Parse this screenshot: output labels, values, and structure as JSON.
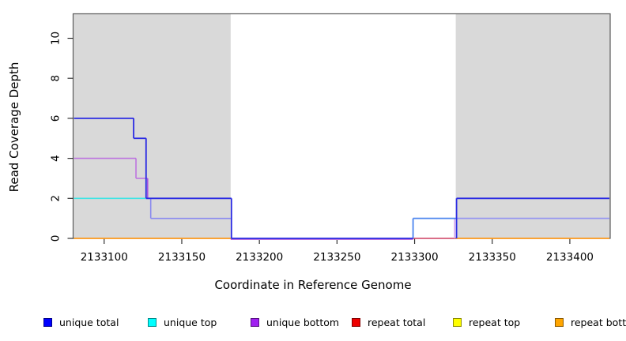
{
  "chart_data": {
    "type": "line",
    "subtype": "step-coverage",
    "title": "",
    "xlabel": "Coordinate in Reference Genome",
    "ylabel": "Read Coverage Depth",
    "xlim": [
      2133080,
      2133426
    ],
    "ylim": [
      0,
      11.2
    ],
    "x_ticks": [
      2133100,
      2133150,
      2133200,
      2133250,
      2133300,
      2133350,
      2133400
    ],
    "y_ticks": [
      0,
      2,
      4,
      6,
      8,
      10
    ],
    "grid": false,
    "plot_background": "#ffffff",
    "shaded_regions": {
      "color": "#d9d9d9",
      "regions": [
        [
          2133080,
          2133181.5
        ],
        [
          2133326.5,
          2133426
        ]
      ]
    },
    "series": [
      {
        "name": "unique total",
        "color": "#0000ff",
        "steps": [
          [
            2133080,
            6
          ],
          [
            2133119,
            5
          ],
          [
            2133127,
            2
          ],
          [
            2133182,
            0
          ],
          [
            2133327,
            2
          ],
          [
            2133426,
            2
          ]
        ]
      },
      {
        "name": "unique top",
        "color": "#00ffff",
        "steps": [
          [
            2133080,
            2
          ],
          [
            2133127,
            1
          ],
          [
            2133182,
            0
          ],
          [
            2133299,
            1
          ],
          [
            2133426,
            1
          ]
        ]
      },
      {
        "name": "unique bottom",
        "color": "#a020f0",
        "steps": [
          [
            2133080,
            4
          ],
          [
            2133120.5,
            3
          ],
          [
            2133128,
            1
          ],
          [
            2133182,
            0
          ],
          [
            2133326,
            1
          ],
          [
            2133426,
            1
          ]
        ]
      },
      {
        "name": "repeat total",
        "color": "#ee0000",
        "steps": [
          [
            2133080,
            0
          ],
          [
            2133426,
            0
          ]
        ]
      },
      {
        "name": "repeat top",
        "color": "#ffff00",
        "steps": [
          [
            2133080,
            0
          ],
          [
            2133426,
            0
          ]
        ]
      },
      {
        "name": "repeat bottom",
        "color": "#ffa500",
        "steps": [
          [
            2133080,
            0
          ],
          [
            2133426,
            0
          ]
        ]
      }
    ],
    "legend": {
      "position": "bottom",
      "entries": [
        {
          "label": "unique total",
          "color": "#0000ff"
        },
        {
          "label": "unique top",
          "color": "#00ffff"
        },
        {
          "label": "unique bottom",
          "color": "#a020f0"
        },
        {
          "label": "repeat total",
          "color": "#ee0000"
        },
        {
          "label": "repeat top",
          "color": "#ffff00"
        },
        {
          "label": "repeat bottom",
          "color": "#ffa500"
        }
      ]
    },
    "render_segments": [
      {
        "x1": 2133080.5,
        "y1": 2,
        "x2": 2133127,
        "y2": 2,
        "color": "#3fe4e4",
        "w": 1.6,
        "dy": 0
      },
      {
        "x1": 2133080.5,
        "y1": 4,
        "x2": 2133120.5,
        "y2": 4,
        "color": "#bd74df",
        "w": 1.6,
        "dy": 0
      },
      {
        "x1": 2133120.5,
        "y1": 4,
        "x2": 2133120.5,
        "y2": 3,
        "color": "#bd74df",
        "w": 1.6,
        "dy": 0
      },
      {
        "x1": 2133120.5,
        "y1": 3,
        "x2": 2133128,
        "y2": 3,
        "color": "#bd74df",
        "w": 1.6,
        "dy": 0
      },
      {
        "x1": 2133128,
        "y1": 3,
        "x2": 2133128,
        "y2": 2,
        "color": "#a24fe0",
        "w": 1.6,
        "dy": 0
      },
      {
        "x1": 2133181.5,
        "y1": 0,
        "x2": 2133299,
        "y2": 0,
        "color": "#bd74df",
        "w": 1.6,
        "dy": 1.2
      },
      {
        "x1": 2133130,
        "y1": 2,
        "x2": 2133130,
        "y2": 1,
        "color": "#8a8aef",
        "w": 1.6,
        "dy": 0
      },
      {
        "x1": 2133130,
        "y1": 1,
        "x2": 2133181.5,
        "y2": 1,
        "color": "#8a8aef",
        "w": 1.6,
        "dy": 0
      },
      {
        "x1": 2133299,
        "y1": 0,
        "x2": 2133326.5,
        "y2": 0,
        "color": "#d9486b",
        "w": 1.6,
        "dy": 0
      },
      {
        "x1": 2133325.8,
        "y1": 0,
        "x2": 2133325.8,
        "y2": 1,
        "color": "#d5a6ec",
        "w": 1.6,
        "dy": 0
      },
      {
        "x1": 2133326.5,
        "y1": 1,
        "x2": 2133425.5,
        "y2": 1,
        "color": "#9595f1",
        "w": 1.8,
        "dy": 0
      },
      {
        "x1": 2133080.5,
        "y1": 0,
        "x2": 2133181.5,
        "y2": 0,
        "color": "#ff9b1e",
        "w": 1.8,
        "dy": 0
      },
      {
        "x1": 2133326.5,
        "y1": 0,
        "x2": 2133425.5,
        "y2": 0,
        "color": "#ff9b1e",
        "w": 1.8,
        "dy": 0
      },
      {
        "x1": 2133299,
        "y1": 0,
        "x2": 2133299,
        "y2": 1,
        "color": "#4c86ef",
        "w": 1.8,
        "dy": 0
      },
      {
        "x1": 2133299,
        "y1": 1,
        "x2": 2133326.5,
        "y2": 1,
        "color": "#4c86ef",
        "w": 1.8,
        "dy": 0
      },
      {
        "x1": 2133080.5,
        "y1": 6,
        "x2": 2133119,
        "y2": 6,
        "color": "#2a2ae3",
        "w": 1.8,
        "dy": 0
      },
      {
        "x1": 2133119,
        "y1": 6,
        "x2": 2133119,
        "y2": 5,
        "color": "#2a2ae3",
        "w": 1.8,
        "dy": 0
      },
      {
        "x1": 2133119,
        "y1": 5,
        "x2": 2133127,
        "y2": 5,
        "color": "#2a2ae3",
        "w": 1.8,
        "dy": 0
      },
      {
        "x1": 2133127,
        "y1": 5,
        "x2": 2133127,
        "y2": 2,
        "color": "#2a2ae3",
        "w": 1.8,
        "dy": 0
      },
      {
        "x1": 2133127,
        "y1": 2,
        "x2": 2133182,
        "y2": 2,
        "color": "#2a2ae3",
        "w": 1.8,
        "dy": 0
      },
      {
        "x1": 2133182,
        "y1": 2,
        "x2": 2133182,
        "y2": 0,
        "color": "#2a2ae3",
        "w": 1.8,
        "dy": 0
      },
      {
        "x1": 2133182,
        "y1": 0,
        "x2": 2133299,
        "y2": 0,
        "color": "#2a2ae3",
        "w": 1.8,
        "dy": 0
      },
      {
        "x1": 2133327,
        "y1": 0,
        "x2": 2133327,
        "y2": 2,
        "color": "#2a2ae3",
        "w": 1.8,
        "dy": 0
      },
      {
        "x1": 2133327,
        "y1": 2,
        "x2": 2133425.5,
        "y2": 2,
        "color": "#2a2ae3",
        "w": 1.8,
        "dy": 0
      }
    ]
  },
  "axes": {
    "x_title": "Coordinate in Reference Genome",
    "y_title": "Read Coverage Depth"
  },
  "style_colors": {
    "box_stroke": "#5a5a5a",
    "tick_stroke": "#333333",
    "tick_label": "#000000",
    "shading": "#d9d9d9"
  }
}
